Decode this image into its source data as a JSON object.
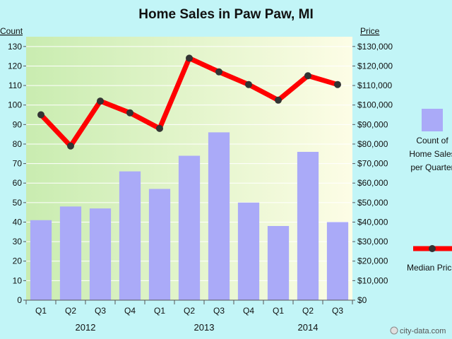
{
  "chart_data": {
    "type": "bar+line",
    "title": "Home Sales in Paw Paw, MI",
    "left_axis_label": "Count",
    "right_axis_label": "Price",
    "categories": [
      "Q1",
      "Q2",
      "Q3",
      "Q4",
      "Q1",
      "Q2",
      "Q3",
      "Q4",
      "Q1",
      "Q2",
      "Q3"
    ],
    "years": [
      {
        "label": "2012",
        "span": [
          0,
          3
        ]
      },
      {
        "label": "2013",
        "span": [
          4,
          7
        ]
      },
      {
        "label": "2014",
        "span": [
          8,
          10
        ]
      }
    ],
    "series": [
      {
        "name": "Count of Home Sales per Quarter",
        "type": "bar",
        "axis": "left",
        "values": [
          41,
          48,
          47,
          66,
          57,
          74,
          86,
          50,
          38,
          76,
          40
        ]
      },
      {
        "name": "Median Price",
        "type": "line",
        "axis": "right",
        "values": [
          95000,
          79000,
          102000,
          96000,
          88000,
          124000,
          117000,
          110500,
          102500,
          115000,
          110500
        ]
      }
    ],
    "left_ylim": [
      0,
      135
    ],
    "right_ylim": [
      0,
      135000
    ],
    "left_ticks": [
      "0",
      "10",
      "20",
      "30",
      "40",
      "50",
      "60",
      "70",
      "80",
      "90",
      "100",
      "110",
      "120",
      "130"
    ],
    "right_ticks": [
      "$0",
      "$10,000",
      "$20,000",
      "$30,000",
      "$40,000",
      "$50,000",
      "$60,000",
      "$70,000",
      "$80,000",
      "$90,000",
      "$100,000",
      "$110,000",
      "$120,000",
      "$130,000"
    ],
    "legend": {
      "bar_label_lines": [
        "Count of",
        "Home Sales",
        "per Quarter"
      ],
      "line_label": "Median Price",
      "placement": "right"
    },
    "colors": {
      "bar": "#aaaaf8",
      "line": "#ff0000",
      "marker": "#333333",
      "background": "#c2f5f7",
      "plot_left": "#c9ecb0",
      "plot_right": "#fdfde6"
    }
  },
  "watermark": "city-data.com"
}
